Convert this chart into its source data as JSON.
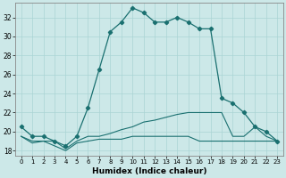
{
  "xlabel": "Humidex (Indice chaleur)",
  "xlim": [
    -0.5,
    23.5
  ],
  "ylim": [
    17.5,
    33.5
  ],
  "yticks": [
    18,
    20,
    22,
    24,
    26,
    28,
    30,
    32
  ],
  "xticks": [
    0,
    1,
    2,
    3,
    4,
    5,
    6,
    7,
    8,
    9,
    10,
    11,
    12,
    13,
    14,
    15,
    16,
    17,
    18,
    19,
    20,
    21,
    22,
    23
  ],
  "bg_color": "#cce8e8",
  "grid_color": "#aad4d4",
  "line_color": "#1a7070",
  "line1_x": [
    0,
    1,
    2,
    3,
    4,
    5,
    6,
    7,
    8,
    9,
    10,
    11,
    12,
    13,
    14,
    15,
    16,
    17,
    18,
    19,
    20,
    21,
    22,
    23
  ],
  "line1_y": [
    20.5,
    19.5,
    19.5,
    19.0,
    18.5,
    19.5,
    22.5,
    26.5,
    30.5,
    31.5,
    33.0,
    32.5,
    31.5,
    31.5,
    32.0,
    31.5,
    30.8,
    30.8,
    23.5,
    23.0,
    22.0,
    20.5,
    20.0,
    19.0
  ],
  "line2_x": [
    0,
    1,
    2,
    3,
    4,
    5,
    6,
    7,
    8,
    9,
    10,
    11,
    12,
    13,
    14,
    15,
    16,
    17,
    18,
    19,
    20,
    21,
    22,
    23
  ],
  "line2_y": [
    19.5,
    18.8,
    19.0,
    19.0,
    18.2,
    19.0,
    19.5,
    19.5,
    19.8,
    20.2,
    20.5,
    21.0,
    21.2,
    21.5,
    21.8,
    22.0,
    22.0,
    22.0,
    22.0,
    19.5,
    19.5,
    20.5,
    19.5,
    19.0
  ],
  "line3_x": [
    0,
    1,
    2,
    3,
    4,
    5,
    6,
    7,
    8,
    9,
    10,
    11,
    12,
    13,
    14,
    15,
    16,
    17,
    18,
    19,
    20,
    21,
    22,
    23
  ],
  "line3_y": [
    19.5,
    19.0,
    19.0,
    18.5,
    18.0,
    18.8,
    19.0,
    19.2,
    19.2,
    19.2,
    19.5,
    19.5,
    19.5,
    19.5,
    19.5,
    19.5,
    19.0,
    19.0,
    19.0,
    19.0,
    19.0,
    19.0,
    19.0,
    19.0
  ]
}
